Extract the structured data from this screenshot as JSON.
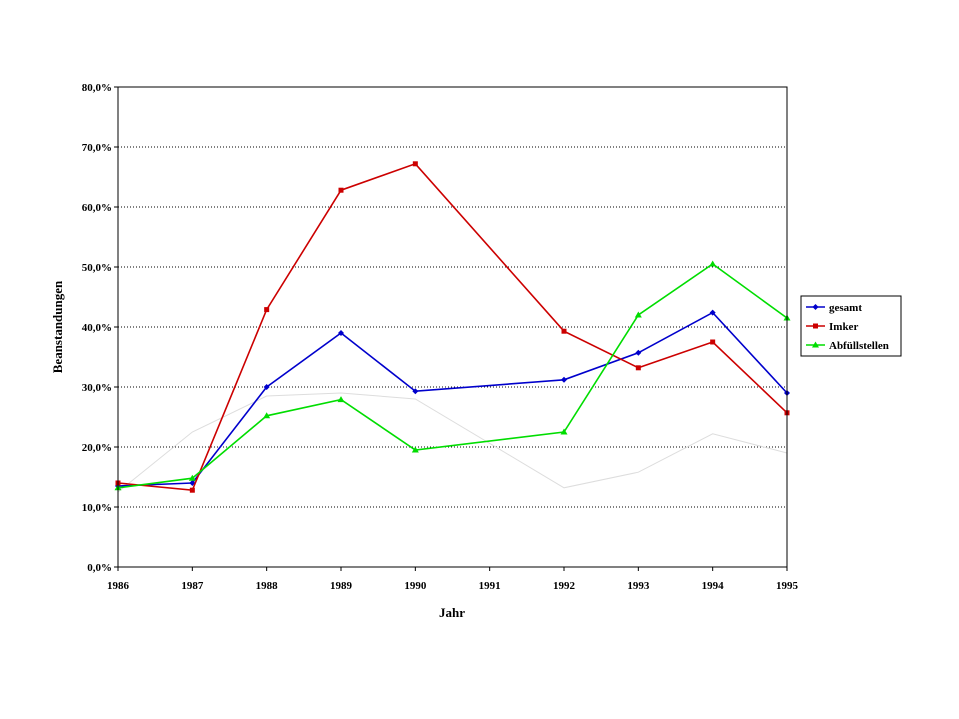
{
  "chart_data": {
    "type": "line",
    "title": "",
    "xlabel": "Jahr",
    "ylabel": "Beanstandungen",
    "categories": [
      "1986",
      "1987",
      "1988",
      "1989",
      "1990",
      "1991",
      "1992",
      "1993",
      "1994",
      "1995"
    ],
    "ylim": [
      0,
      80
    ],
    "y_ticks": [
      "0,0%",
      "10,0%",
      "20,0%",
      "30,0%",
      "40,0%",
      "50,0%",
      "60,0%",
      "70,0%",
      "80,0%"
    ],
    "grid": "horizontal dotted",
    "legend_position": "right",
    "series": [
      {
        "name": "gesamt",
        "color": "#0000cc",
        "marker": "diamond",
        "values": [
          13.5,
          14.0,
          30.0,
          39.0,
          29.3,
          null,
          31.2,
          35.7,
          42.4,
          29.0
        ]
      },
      {
        "name": "Imker",
        "color": "#cc0000",
        "marker": "square",
        "values": [
          14.0,
          12.8,
          42.9,
          62.8,
          67.2,
          null,
          39.3,
          33.2,
          37.5,
          25.7
        ]
      },
      {
        "name": "Abfüllstellen",
        "color": "#00dd00",
        "marker": "triangle",
        "values": [
          13.2,
          14.8,
          25.2,
          27.9,
          19.5,
          null,
          22.5,
          42.0,
          50.5,
          41.5
        ]
      },
      {
        "name": "",
        "color": "#dddddd",
        "marker": "none",
        "values": [
          12.5,
          22.5,
          28.5,
          29.0,
          28.0,
          null,
          13.2,
          15.8,
          22.2,
          19.0
        ]
      }
    ]
  }
}
